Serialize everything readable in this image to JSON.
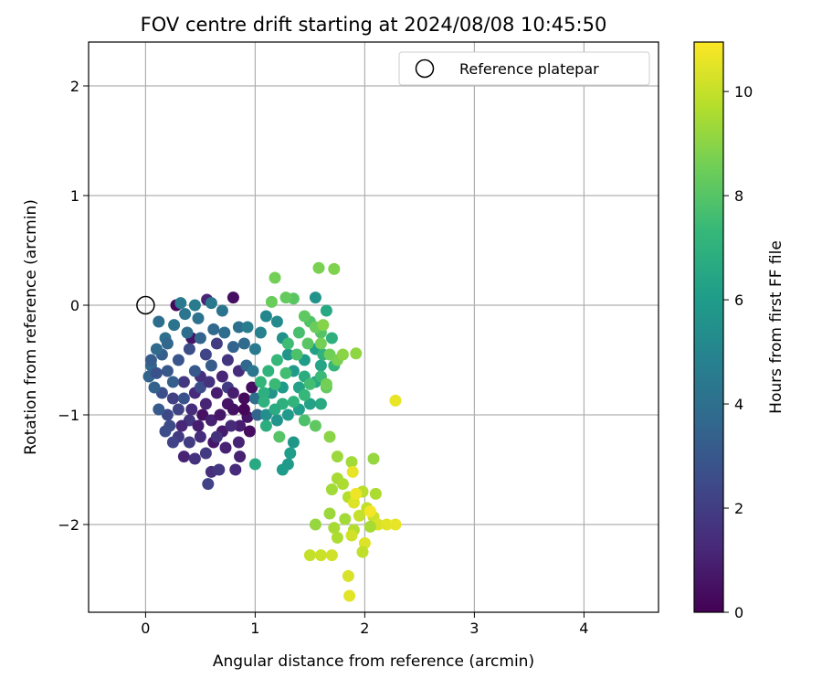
{
  "chart_data": {
    "type": "scatter",
    "title": "FOV centre drift starting at 2024/08/08 10:45:50",
    "xlabel": "Angular distance from reference (arcmin)",
    "ylabel": "Rotation from reference (arcmin)",
    "xlim": [
      -0.52,
      4.68
    ],
    "ylim": [
      -2.8,
      2.4
    ],
    "xticks": [
      0,
      1,
      2,
      3,
      4
    ],
    "yticks": [
      -2,
      -1,
      0,
      1,
      2
    ],
    "grid": true,
    "legend": {
      "position": "top-right",
      "entries": [
        "Reference platepar"
      ]
    },
    "reference_point": {
      "x": 0,
      "y": 0,
      "marker": "open-circle",
      "color": "#000000"
    },
    "colorbar": {
      "label": "Hours from first FF file",
      "colormap": "viridis",
      "range": [
        0,
        10.95
      ],
      "ticks": [
        0,
        2,
        4,
        6,
        8,
        10
      ]
    },
    "colormap_stops": [
      "#440154",
      "#482878",
      "#3e4989",
      "#31688e",
      "#26828e",
      "#1f9e89",
      "#35b779",
      "#6ece58",
      "#b5de2b",
      "#fde725"
    ],
    "series": [
      {
        "values": [
          {
            "x": 0.8,
            "y": 0.07,
            "c": 0.4
          },
          {
            "x": 0.56,
            "y": 0.05,
            "c": 1.2
          },
          {
            "x": 0.42,
            "y": -0.3,
            "c": 0.6
          },
          {
            "x": 0.86,
            "y": -1.1,
            "c": 0.9
          },
          {
            "x": 0.52,
            "y": -1.0,
            "c": 0.5
          },
          {
            "x": 0.73,
            "y": -1.3,
            "c": 1.0
          },
          {
            "x": 0.6,
            "y": -1.52,
            "c": 1.5
          },
          {
            "x": 0.67,
            "y": -1.5,
            "c": 1.8
          },
          {
            "x": 0.82,
            "y": -1.5,
            "c": 1.3
          },
          {
            "x": 0.86,
            "y": -1.38,
            "c": 1.0
          },
          {
            "x": 0.35,
            "y": -1.38,
            "c": 1.1
          },
          {
            "x": 0.45,
            "y": -1.4,
            "c": 1.6
          },
          {
            "x": 0.57,
            "y": -1.63,
            "c": 2.2
          },
          {
            "x": 0.62,
            "y": -1.25,
            "c": 0.7
          },
          {
            "x": 0.7,
            "y": -1.15,
            "c": 0.8
          },
          {
            "x": 0.5,
            "y": -1.2,
            "c": 1.4
          },
          {
            "x": 0.3,
            "y": -1.2,
            "c": 1.9
          },
          {
            "x": 0.28,
            "y": 0.0,
            "c": 0.2
          },
          {
            "x": 0.75,
            "y": -0.9,
            "c": 0.6
          },
          {
            "x": 0.65,
            "y": -0.8,
            "c": 0.9
          },
          {
            "x": 0.55,
            "y": -0.9,
            "c": 1.1
          },
          {
            "x": 0.45,
            "y": -0.8,
            "c": 1.3
          },
          {
            "x": 0.4,
            "y": -1.05,
            "c": 1.7
          },
          {
            "x": 0.6,
            "y": -1.05,
            "c": 1.0
          },
          {
            "x": 0.8,
            "y": -0.95,
            "c": 0.5
          },
          {
            "x": 0.9,
            "y": -0.85,
            "c": 0.3
          },
          {
            "x": 0.93,
            "y": -1.02,
            "c": 0.6
          },
          {
            "x": 0.97,
            "y": -0.75,
            "c": 0.4
          },
          {
            "x": 0.7,
            "y": -0.65,
            "c": 1.2
          },
          {
            "x": 0.5,
            "y": -0.65,
            "c": 1.5
          },
          {
            "x": 0.35,
            "y": -0.7,
            "c": 1.8
          },
          {
            "x": 0.25,
            "y": -0.85,
            "c": 2.1
          },
          {
            "x": 0.2,
            "y": -1.0,
            "c": 2.4
          },
          {
            "x": 0.15,
            "y": -0.8,
            "c": 2.7
          },
          {
            "x": 0.2,
            "y": -0.6,
            "c": 3.0
          },
          {
            "x": 0.15,
            "y": -0.45,
            "c": 3.3
          },
          {
            "x": 0.3,
            "y": -0.5,
            "c": 2.9
          },
          {
            "x": 0.4,
            "y": -0.4,
            "c": 2.6
          },
          {
            "x": 0.55,
            "y": -0.45,
            "c": 2.3
          },
          {
            "x": 0.65,
            "y": -0.35,
            "c": 2.0
          },
          {
            "x": 0.75,
            "y": -0.5,
            "c": 1.7
          },
          {
            "x": 0.85,
            "y": -0.6,
            "c": 1.4
          },
          {
            "x": 0.3,
            "y": -0.95,
            "c": 2.2
          },
          {
            "x": 0.22,
            "y": -1.1,
            "c": 2.5
          },
          {
            "x": 0.12,
            "y": -0.95,
            "c": 3.1
          },
          {
            "x": 0.08,
            "y": -0.75,
            "c": 3.4
          },
          {
            "x": 0.05,
            "y": -0.55,
            "c": 3.6
          },
          {
            "x": 0.1,
            "y": -0.4,
            "c": 3.8
          },
          {
            "x": 0.18,
            "y": -0.3,
            "c": 4.0
          },
          {
            "x": 0.26,
            "y": -0.18,
            "c": 4.2
          },
          {
            "x": 0.36,
            "y": -0.08,
            "c": 4.3
          },
          {
            "x": 0.48,
            "y": -0.12,
            "c": 4.1
          },
          {
            "x": 0.6,
            "y": 0.02,
            "c": 4.4
          },
          {
            "x": 0.7,
            "y": -0.05,
            "c": 4.2
          },
          {
            "x": 0.72,
            "y": -0.25,
            "c": 3.9
          },
          {
            "x": 0.62,
            "y": -0.22,
            "c": 3.7
          },
          {
            "x": 0.5,
            "y": -0.3,
            "c": 3.5
          },
          {
            "x": 0.38,
            "y": -0.25,
            "c": 3.9
          },
          {
            "x": 0.32,
            "y": 0.02,
            "c": 4.5
          },
          {
            "x": 0.45,
            "y": 0.0,
            "c": 4.6
          },
          {
            "x": 0.85,
            "y": -0.2,
            "c": 4.0
          },
          {
            "x": 0.9,
            "y": -0.35,
            "c": 3.8
          },
          {
            "x": 0.92,
            "y": -0.55,
            "c": 3.6
          },
          {
            "x": 0.8,
            "y": -0.38,
            "c": 3.5
          },
          {
            "x": 0.6,
            "y": -0.55,
            "c": 3.2
          },
          {
            "x": 0.45,
            "y": -0.6,
            "c": 3.0
          },
          {
            "x": 0.25,
            "y": -0.7,
            "c": 3.3
          },
          {
            "x": 0.35,
            "y": -0.85,
            "c": 2.8
          },
          {
            "x": 0.5,
            "y": -0.75,
            "c": 2.6
          },
          {
            "x": 0.2,
            "y": -0.35,
            "c": 3.6
          },
          {
            "x": 0.12,
            "y": -0.15,
            "c": 3.9
          },
          {
            "x": 0.05,
            "y": -0.5,
            "c": 3.2
          },
          {
            "x": 0.03,
            "y": -0.65,
            "c": 3.5
          },
          {
            "x": 0.1,
            "y": -0.62,
            "c": 2.8
          },
          {
            "x": 0.18,
            "y": -1.15,
            "c": 2.6
          },
          {
            "x": 0.25,
            "y": -1.25,
            "c": 2.2
          },
          {
            "x": 0.4,
            "y": -1.25,
            "c": 2.0
          },
          {
            "x": 0.55,
            "y": -1.35,
            "c": 1.9
          },
          {
            "x": 0.65,
            "y": -1.2,
            "c": 1.6
          },
          {
            "x": 0.78,
            "y": -1.1,
            "c": 1.3
          },
          {
            "x": 0.85,
            "y": -1.25,
            "c": 1.1
          },
          {
            "x": 0.75,
            "y": -0.75,
            "c": 1.9
          },
          {
            "x": 0.58,
            "y": -0.7,
            "c": 1.6
          },
          {
            "x": 0.42,
            "y": -0.95,
            "c": 1.4
          },
          {
            "x": 0.33,
            "y": -1.1,
            "c": 1.2
          },
          {
            "x": 0.48,
            "y": -1.1,
            "c": 0.9
          },
          {
            "x": 0.68,
            "y": -1.0,
            "c": 0.7
          },
          {
            "x": 0.8,
            "y": -0.8,
            "c": 0.9
          },
          {
            "x": 0.9,
            "y": -0.95,
            "c": 0.2
          },
          {
            "x": 0.95,
            "y": -1.15,
            "c": 0.4
          },
          {
            "x": 1.02,
            "y": -1.0,
            "c": 3.5
          },
          {
            "x": 1.0,
            "y": -0.85,
            "c": 4.0
          },
          {
            "x": 0.98,
            "y": -0.6,
            "c": 4.3
          },
          {
            "x": 1.0,
            "y": -0.4,
            "c": 4.5
          },
          {
            "x": 0.93,
            "y": -0.2,
            "c": 4.6
          },
          {
            "x": 1.05,
            "y": -0.25,
            "c": 4.8
          },
          {
            "x": 1.1,
            "y": -0.1,
            "c": 5.0
          },
          {
            "x": 1.2,
            "y": -0.15,
            "c": 5.2
          },
          {
            "x": 1.25,
            "y": -0.3,
            "c": 5.5
          },
          {
            "x": 1.3,
            "y": -0.45,
            "c": 5.7
          },
          {
            "x": 1.35,
            "y": -0.6,
            "c": 5.9
          },
          {
            "x": 1.45,
            "y": -0.5,
            "c": 6.0
          },
          {
            "x": 1.55,
            "y": -0.4,
            "c": 6.2
          },
          {
            "x": 1.6,
            "y": -0.55,
            "c": 6.4
          },
          {
            "x": 1.55,
            "y": -0.7,
            "c": 6.5
          },
          {
            "x": 1.6,
            "y": -0.9,
            "c": 6.6
          },
          {
            "x": 1.5,
            "y": -0.9,
            "c": 6.3
          },
          {
            "x": 1.4,
            "y": -0.95,
            "c": 6.1
          },
          {
            "x": 1.3,
            "y": -1.0,
            "c": 5.9
          },
          {
            "x": 1.2,
            "y": -1.05,
            "c": 5.7
          },
          {
            "x": 1.1,
            "y": -1.0,
            "c": 5.4
          },
          {
            "x": 1.15,
            "y": -0.8,
            "c": 5.6
          },
          {
            "x": 1.25,
            "y": -0.75,
            "c": 6.0
          },
          {
            "x": 1.4,
            "y": -0.75,
            "c": 6.3
          },
          {
            "x": 1.45,
            "y": -0.65,
            "c": 6.8
          },
          {
            "x": 1.35,
            "y": -1.25,
            "c": 5.8
          },
          {
            "x": 1.32,
            "y": -1.35,
            "c": 6.1
          },
          {
            "x": 1.3,
            "y": -1.45,
            "c": 5.9
          },
          {
            "x": 1.25,
            "y": -1.5,
            "c": 6.0
          },
          {
            "x": 1.0,
            "y": -1.45,
            "c": 6.6
          },
          {
            "x": 1.55,
            "y": 0.07,
            "c": 5.6
          },
          {
            "x": 1.65,
            "y": -0.05,
            "c": 6.6
          },
          {
            "x": 1.7,
            "y": -0.3,
            "c": 6.9
          },
          {
            "x": 1.62,
            "y": -0.45,
            "c": 7.0
          },
          {
            "x": 1.72,
            "y": -0.55,
            "c": 7.2
          },
          {
            "x": 1.6,
            "y": -0.65,
            "c": 7.4
          },
          {
            "x": 1.5,
            "y": -0.72,
            "c": 7.6
          },
          {
            "x": 1.45,
            "y": -0.82,
            "c": 7.3
          },
          {
            "x": 1.35,
            "y": -0.88,
            "c": 7.1
          },
          {
            "x": 1.25,
            "y": -0.9,
            "c": 6.9
          },
          {
            "x": 1.18,
            "y": -0.95,
            "c": 6.7
          },
          {
            "x": 1.08,
            "y": -0.8,
            "c": 6.9
          },
          {
            "x": 1.12,
            "y": -0.6,
            "c": 7.1
          },
          {
            "x": 1.2,
            "y": -0.5,
            "c": 7.3
          },
          {
            "x": 1.3,
            "y": -0.35,
            "c": 7.5
          },
          {
            "x": 1.4,
            "y": -0.25,
            "c": 7.7
          },
          {
            "x": 1.5,
            "y": -0.15,
            "c": 7.9
          },
          {
            "x": 1.6,
            "y": -0.25,
            "c": 8.0
          },
          {
            "x": 1.48,
            "y": -0.35,
            "c": 8.1
          },
          {
            "x": 1.38,
            "y": -0.45,
            "c": 7.8
          },
          {
            "x": 1.28,
            "y": -0.62,
            "c": 7.6
          },
          {
            "x": 1.18,
            "y": -0.72,
            "c": 7.4
          },
          {
            "x": 1.05,
            "y": -0.7,
            "c": 7.2
          },
          {
            "x": 1.08,
            "y": -0.88,
            "c": 7.0
          },
          {
            "x": 1.1,
            "y": -1.1,
            "c": 6.8
          },
          {
            "x": 1.22,
            "y": -1.2,
            "c": 8.0
          },
          {
            "x": 1.45,
            "y": -1.05,
            "c": 7.8
          },
          {
            "x": 1.55,
            "y": -1.1,
            "c": 8.2
          },
          {
            "x": 1.65,
            "y": -0.75,
            "c": 8.3
          },
          {
            "x": 1.68,
            "y": -0.45,
            "c": 8.5
          },
          {
            "x": 1.6,
            "y": -0.35,
            "c": 8.6
          },
          {
            "x": 1.55,
            "y": -0.2,
            "c": 8.4
          },
          {
            "x": 1.45,
            "y": -0.1,
            "c": 8.2
          },
          {
            "x": 1.35,
            "y": 0.06,
            "c": 8.1
          },
          {
            "x": 1.28,
            "y": 0.07,
            "c": 8.3
          },
          {
            "x": 1.15,
            "y": 0.03,
            "c": 8.4
          },
          {
            "x": 1.18,
            "y": 0.25,
            "c": 8.6
          },
          {
            "x": 1.58,
            "y": 0.34,
            "c": 8.7
          },
          {
            "x": 1.72,
            "y": 0.33,
            "c": 8.8
          },
          {
            "x": 1.62,
            "y": -0.18,
            "c": 8.9
          },
          {
            "x": 1.75,
            "y": -0.5,
            "c": 8.7
          },
          {
            "x": 1.8,
            "y": -0.45,
            "c": 9.0
          },
          {
            "x": 1.92,
            "y": -0.44,
            "c": 9.1
          },
          {
            "x": 1.65,
            "y": -0.72,
            "c": 8.6
          },
          {
            "x": 1.68,
            "y": -1.2,
            "c": 9.0
          },
          {
            "x": 1.75,
            "y": -1.38,
            "c": 9.3
          },
          {
            "x": 1.88,
            "y": -1.43,
            "c": 9.4
          },
          {
            "x": 2.08,
            "y": -1.4,
            "c": 9.2
          },
          {
            "x": 1.75,
            "y": -1.58,
            "c": 9.5
          },
          {
            "x": 1.8,
            "y": -1.63,
            "c": 9.6
          },
          {
            "x": 1.7,
            "y": -1.68,
            "c": 9.4
          },
          {
            "x": 1.68,
            "y": -1.9,
            "c": 9.3
          },
          {
            "x": 1.55,
            "y": -2.0,
            "c": 9.2
          },
          {
            "x": 1.72,
            "y": -2.03,
            "c": 9.5
          },
          {
            "x": 1.75,
            "y": -2.12,
            "c": 9.6
          },
          {
            "x": 1.82,
            "y": -1.95,
            "c": 9.4
          },
          {
            "x": 1.85,
            "y": -1.75,
            "c": 9.7
          },
          {
            "x": 1.98,
            "y": -1.7,
            "c": 9.8
          },
          {
            "x": 2.1,
            "y": -1.72,
            "c": 9.6
          },
          {
            "x": 2.02,
            "y": -1.85,
            "c": 9.9
          },
          {
            "x": 1.95,
            "y": -1.92,
            "c": 10.0
          },
          {
            "x": 2.08,
            "y": -1.93,
            "c": 10.1
          },
          {
            "x": 2.12,
            "y": -2.0,
            "c": 10.3
          },
          {
            "x": 2.05,
            "y": -2.02,
            "c": 9.5
          },
          {
            "x": 1.9,
            "y": -2.05,
            "c": 9.7
          },
          {
            "x": 1.88,
            "y": -2.1,
            "c": 10.2
          },
          {
            "x": 2.0,
            "y": -2.17,
            "c": 10.4
          },
          {
            "x": 1.98,
            "y": -2.25,
            "c": 9.9
          },
          {
            "x": 1.5,
            "y": -2.28,
            "c": 10.0
          },
          {
            "x": 1.6,
            "y": -2.28,
            "c": 10.1
          },
          {
            "x": 1.7,
            "y": -2.28,
            "c": 10.2
          },
          {
            "x": 1.85,
            "y": -2.47,
            "c": 10.3
          },
          {
            "x": 1.86,
            "y": -2.65,
            "c": 10.5
          },
          {
            "x": 1.89,
            "y": -1.52,
            "c": 10.6
          },
          {
            "x": 1.9,
            "y": -1.8,
            "c": 10.4
          },
          {
            "x": 2.2,
            "y": -2.0,
            "c": 10.5
          },
          {
            "x": 2.28,
            "y": -2.0,
            "c": 10.6
          },
          {
            "x": 2.28,
            "y": -0.87,
            "c": 10.6
          },
          {
            "x": 1.92,
            "y": -1.72,
            "c": 10.7
          },
          {
            "x": 2.05,
            "y": -1.88,
            "c": 10.8
          }
        ]
      }
    ]
  }
}
